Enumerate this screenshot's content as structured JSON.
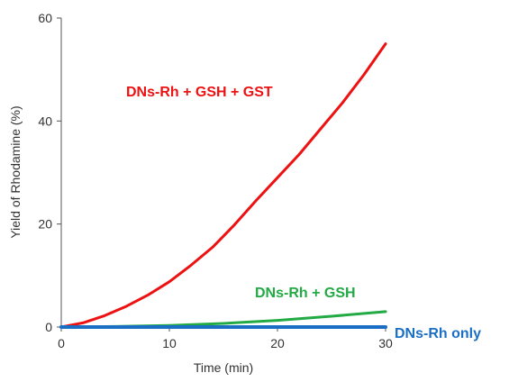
{
  "chart_data": {
    "type": "line",
    "xlabel": "Time (min)",
    "ylabel": "Yield of Rhodamine (%)",
    "xlim": [
      0,
      30
    ],
    "ylim": [
      0,
      60
    ],
    "x_ticks": [
      0,
      10,
      20,
      30
    ],
    "y_ticks": [
      0,
      20,
      40,
      60
    ],
    "grid": false,
    "series": [
      {
        "name": "DNs-Rh + GSH + GST",
        "color": "#ee1111",
        "x": [
          0,
          2,
          4,
          6,
          8,
          10,
          12,
          14,
          16,
          18,
          20,
          22,
          24,
          26,
          28,
          30
        ],
        "y": [
          0,
          0.8,
          2.2,
          4.0,
          6.2,
          8.8,
          12.0,
          15.5,
          19.8,
          24.5,
          29.0,
          33.5,
          38.5,
          43.5,
          49.0,
          55.0
        ]
      },
      {
        "name": "DNs-Rh + GSH",
        "color": "#22aa44",
        "x": [
          0,
          5,
          10,
          15,
          20,
          25,
          30
        ],
        "y": [
          0,
          0.1,
          0.3,
          0.7,
          1.3,
          2.1,
          3.0
        ]
      },
      {
        "name": "DNs-Rh only",
        "color": "#1a6fc4",
        "x": [
          0,
          30
        ],
        "y": [
          0,
          0
        ]
      }
    ]
  }
}
